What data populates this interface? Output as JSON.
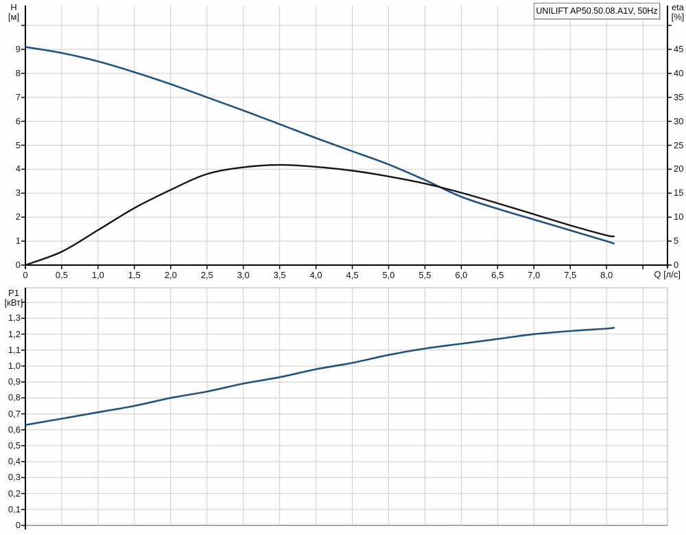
{
  "title_box": {
    "label": "UNILIFT AP50.50.08.A1V, 50Hz"
  },
  "colors": {
    "head_curve": "#20527e",
    "eta_curve": "#141414",
    "power_curve": "#20527e",
    "grid": "#cccccc",
    "axis": "#000000",
    "frame": "#b3b3b3",
    "baseline": "#8a8a8a",
    "text": "#111111"
  },
  "chart_data": [
    {
      "type": "line",
      "name": "head-efficiency-chart",
      "x_axis": {
        "title": "Q [л/с]",
        "min": 0,
        "max": 8.84,
        "grid_step": 0.5,
        "ticks": [
          {
            "v": 0,
            "label": "0"
          },
          {
            "v": 0.5,
            "label": "0,5"
          },
          {
            "v": 1,
            "label": "1,0"
          },
          {
            "v": 1.5,
            "label": "1,5"
          },
          {
            "v": 2,
            "label": "2,0"
          },
          {
            "v": 2.5,
            "label": "2,5"
          },
          {
            "v": 3,
            "label": "3,0"
          },
          {
            "v": 3.5,
            "label": "3,5"
          },
          {
            "v": 4,
            "label": "4,0"
          },
          {
            "v": 4.5,
            "label": "4,5"
          },
          {
            "v": 5,
            "label": "5,0"
          },
          {
            "v": 5.5,
            "label": "5,5"
          },
          {
            "v": 6,
            "label": "6,0"
          },
          {
            "v": 6.5,
            "label": "6,5"
          },
          {
            "v": 7,
            "label": "7,0"
          },
          {
            "v": 7.5,
            "label": "7,5"
          },
          {
            "v": 8,
            "label": "8,0"
          },
          {
            "v": 8.5,
            "label": ""
          }
        ]
      },
      "y_left": {
        "title_top": "H",
        "title_bottom": "[м]",
        "min": 0,
        "max": 10.8,
        "ticks": [
          {
            "v": 0,
            "label": "0"
          },
          {
            "v": 1,
            "label": "1"
          },
          {
            "v": 2,
            "label": "2"
          },
          {
            "v": 3,
            "label": "3"
          },
          {
            "v": 4,
            "label": "4"
          },
          {
            "v": 5,
            "label": "5"
          },
          {
            "v": 6,
            "label": "6"
          },
          {
            "v": 7,
            "label": "7"
          },
          {
            "v": 8,
            "label": "8"
          },
          {
            "v": 9,
            "label": "9"
          },
          {
            "v": 10,
            "label": ""
          }
        ]
      },
      "y_right": {
        "title_top": "eta",
        "title_bottom": "[%]",
        "min": 0,
        "max": 54,
        "ticks": [
          {
            "v": 0,
            "label": "0"
          },
          {
            "v": 5,
            "label": "5"
          },
          {
            "v": 10,
            "label": "10"
          },
          {
            "v": 15,
            "label": "15"
          },
          {
            "v": 20,
            "label": "20"
          },
          {
            "v": 25,
            "label": "25"
          },
          {
            "v": 30,
            "label": "30"
          },
          {
            "v": 35,
            "label": "35"
          },
          {
            "v": 40,
            "label": "40"
          },
          {
            "v": 45,
            "label": "45"
          },
          {
            "v": 50,
            "label": ""
          }
        ]
      },
      "series": [
        {
          "name": "head-curve",
          "axis": "left",
          "color_key": "head_curve",
          "width": 2.6,
          "points": [
            [
              0,
              9.1
            ],
            [
              0.5,
              8.85
            ],
            [
              1,
              8.5
            ],
            [
              1.5,
              8.05
            ],
            [
              2,
              7.55
            ],
            [
              2.5,
              7.0
            ],
            [
              3,
              6.45
            ],
            [
              3.5,
              5.88
            ],
            [
              4,
              5.3
            ],
            [
              4.5,
              4.75
            ],
            [
              5,
              4.2
            ],
            [
              5.5,
              3.55
            ],
            [
              6,
              2.85
            ],
            [
              6.5,
              2.35
            ],
            [
              7,
              1.9
            ],
            [
              7.5,
              1.45
            ],
            [
              8,
              1.0
            ],
            [
              8.1,
              0.9
            ]
          ]
        },
        {
          "name": "efficiency-curve",
          "axis": "right",
          "color_key": "eta_curve",
          "width": 2.4,
          "points": [
            [
              0,
              0
            ],
            [
              0.5,
              2.8
            ],
            [
              1,
              7.3
            ],
            [
              1.5,
              11.9
            ],
            [
              2,
              15.7
            ],
            [
              2.5,
              19.0
            ],
            [
              3,
              20.4
            ],
            [
              3.5,
              20.9
            ],
            [
              4,
              20.5
            ],
            [
              4.5,
              19.7
            ],
            [
              5,
              18.5
            ],
            [
              5.5,
              17.0
            ],
            [
              6,
              15.1
            ],
            [
              6.5,
              12.9
            ],
            [
              7,
              10.6
            ],
            [
              7.5,
              8.3
            ],
            [
              8,
              6.2
            ],
            [
              8.1,
              6.0
            ]
          ]
        }
      ]
    },
    {
      "type": "line",
      "name": "power-chart",
      "x_axis": {
        "title": "",
        "min": 0,
        "max": 8.84,
        "grid_step": 0.5,
        "ticks": []
      },
      "y_left": {
        "title_top": "P1",
        "title_bottom": "[кВт]",
        "min": 0,
        "max": 1.49,
        "ticks": [
          {
            "v": 0,
            "label": "0"
          },
          {
            "v": 0.1,
            "label": "0,1"
          },
          {
            "v": 0.2,
            "label": "0,2"
          },
          {
            "v": 0.3,
            "label": "0,3"
          },
          {
            "v": 0.4,
            "label": "0,4"
          },
          {
            "v": 0.5,
            "label": "0,5"
          },
          {
            "v": 0.6,
            "label": "0,6"
          },
          {
            "v": 0.7,
            "label": "0,7"
          },
          {
            "v": 0.8,
            "label": "0,8"
          },
          {
            "v": 0.9,
            "label": "0,9"
          },
          {
            "v": 1.0,
            "label": "1,0"
          },
          {
            "v": 1.1,
            "label": "1,1"
          },
          {
            "v": 1.2,
            "label": "1,2"
          },
          {
            "v": 1.3,
            "label": "1,3"
          },
          {
            "v": 1.4,
            "label": ""
          }
        ]
      },
      "series": [
        {
          "name": "power-curve",
          "axis": "left",
          "color_key": "power_curve",
          "width": 2.6,
          "points": [
            [
              0,
              0.63
            ],
            [
              0.5,
              0.67
            ],
            [
              1,
              0.71
            ],
            [
              1.5,
              0.75
            ],
            [
              2,
              0.8
            ],
            [
              2.5,
              0.84
            ],
            [
              3,
              0.89
            ],
            [
              3.5,
              0.93
            ],
            [
              4,
              0.98
            ],
            [
              4.5,
              1.02
            ],
            [
              5,
              1.07
            ],
            [
              5.5,
              1.11
            ],
            [
              6,
              1.14
            ],
            [
              6.5,
              1.17
            ],
            [
              7,
              1.2
            ],
            [
              7.5,
              1.22
            ],
            [
              8,
              1.235
            ],
            [
              8.1,
              1.24
            ]
          ]
        }
      ]
    }
  ]
}
